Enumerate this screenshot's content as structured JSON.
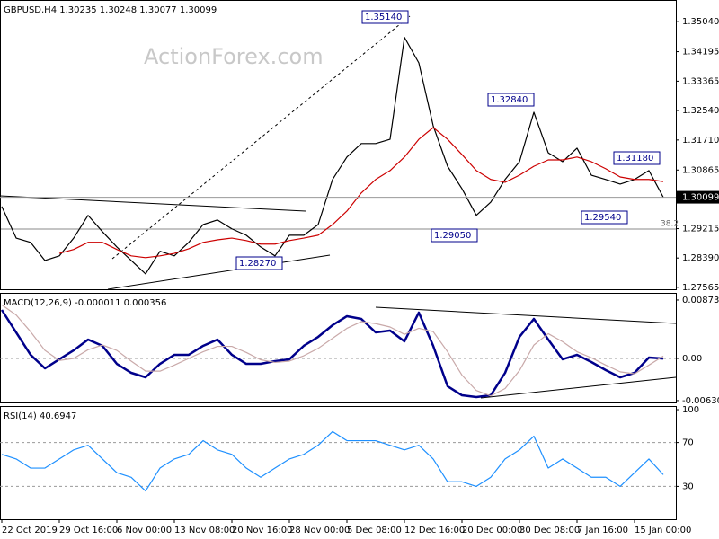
{
  "chart_data": [
    {
      "type": "line",
      "title": "GBPUSD,H4  1.30235 1.30248 1.30077 1.30099",
      "watermark": "ActionForex.com",
      "x": [
        0,
        1,
        2,
        3,
        4,
        5,
        6,
        7,
        8,
        9,
        10,
        11,
        12,
        13,
        14,
        15,
        16,
        17,
        18,
        19,
        20,
        21,
        22,
        23,
        24,
        25,
        26,
        27,
        28,
        29,
        30,
        31,
        32,
        33,
        34,
        35,
        36,
        37,
        38,
        39,
        40,
        41,
        42,
        43,
        44,
        45,
        46
      ],
      "xlim": [
        0,
        47
      ],
      "xticks": [
        {
          "value": 0,
          "label": "22 Oct 2019"
        },
        {
          "value": 4,
          "label": "29 Oct 16:00"
        },
        {
          "value": 8,
          "label": "6 Nov 00:00"
        },
        {
          "value": 12,
          "label": "13 Nov 08:00"
        },
        {
          "value": 16,
          "label": "20 Nov 16:00"
        },
        {
          "value": 20,
          "label": "28 Nov 00:00"
        },
        {
          "value": 24,
          "label": "5 Dec 08:00"
        },
        {
          "value": 28,
          "label": "12 Dec 16:00"
        },
        {
          "value": 32,
          "label": "20 Dec 00:00"
        },
        {
          "value": 36,
          "label": "30 Dec 08:00"
        },
        {
          "value": 40,
          "label": "7 Jan 16:00"
        },
        {
          "value": 44,
          "label": "15 Jan 00:00"
        }
      ],
      "ylim": [
        1.2751,
        1.3565
      ],
      "yticks": [
        {
          "value": 1.3504,
          "label": "1.35040"
        },
        1.34195,
        1.33365,
        {
          "value": 1.3254,
          "label": "1.32540"
        },
        {
          "value": 1.3171,
          "label": "1.31710"
        },
        1.30865,
        1.29215,
        {
          "value": 1.2839,
          "label": "1.28390"
        },
        1.27565
      ],
      "last_price": 1.30099,
      "grid": false,
      "annotations": [
        "1.35140",
        "1.32840",
        "1.31180",
        "1.29540",
        "1.29050",
        "1.28270",
        "38.2"
      ],
      "series": [
        {
          "color": "#000000",
          "values": [
            1.2984,
            1.2895,
            1.2883,
            1.2832,
            1.2845,
            1.2895,
            1.2959,
            1.2913,
            1.287,
            1.2832,
            1.2794,
            1.2858,
            1.2845,
            1.2883,
            1.2933,
            1.2946,
            1.2921,
            1.2903,
            1.287,
            1.2845,
            1.2903,
            1.2903,
            1.2933,
            1.306,
            1.3123,
            1.3161,
            1.3161,
            1.3173,
            1.346,
            1.3388,
            1.3211,
            1.3097,
            1.3034,
            1.2959,
            1.2996,
            1.306,
            1.311,
            1.3249,
            1.3135,
            1.311,
            1.3148,
            1.3072,
            1.306,
            1.3047,
            1.306,
            1.3085,
            1.301
          ]
        },
        {
          "color": "#cc0000",
          "values": [
            null,
            null,
            null,
            null,
            1.2852,
            1.2863,
            1.2883,
            1.2883,
            1.2863,
            1.2845,
            1.284,
            1.2845,
            1.2852,
            1.2865,
            1.2883,
            1.289,
            1.2895,
            1.2888,
            1.2878,
            1.2878,
            1.2888,
            1.2895,
            1.2903,
            1.2933,
            1.2971,
            1.3022,
            1.306,
            1.3085,
            1.3123,
            1.3173,
            1.3206,
            1.3173,
            1.313,
            1.3085,
            1.306,
            1.3052,
            1.3072,
            1.3097,
            1.3115,
            1.3115,
            1.3123,
            1.311,
            1.309,
            1.3067,
            1.306,
            1.306,
            1.3054
          ]
        }
      ]
    },
    {
      "type": "line",
      "title": "MACD(12,26,9) -0.000011 0.000356",
      "ylim": [
        -0.00658,
        0.0098
      ],
      "yticks": [
        0.00873,
        {
          "value": 0,
          "label": "0.00"
        },
        -0.006302
      ],
      "grid": true,
      "series": [
        {
          "color": "#00008b",
          "values": [
            0.00725,
            0.00389,
            0.00054,
            -0.00148,
            -0.00013,
            0.00121,
            0.00282,
            0.00188,
            -0.00081,
            -0.00215,
            -0.00282,
            -0.00081,
            0.00054,
            0.00054,
            0.00188,
            0.00282,
            0.00054,
            -0.00081,
            -0.00081,
            -0.0004,
            -0.00013,
            0.00188,
            0.00322,
            0.00497,
            0.00631,
            0.00591,
            0.00389,
            0.00416,
            0.00255,
            0.00685,
            0.00188,
            -0.00416,
            -0.00551,
            -0.00577,
            -0.00551,
            -0.00215,
            0.00322,
            0.00591,
            0.00282,
            -0.00013,
            0.00054,
            -0.00054,
            -0.00175,
            -0.00282,
            -0.00215,
            0.00013,
            -1.1e-05
          ]
        },
        {
          "color": "#c9a9a9",
          "values": [
            0.008,
            0.0065,
            0.004,
            0.0012,
            -0.0003,
            0,
            0.0013,
            0.002,
            0.0012,
            -0.0004,
            -0.0019,
            -0.0019,
            -0.001,
            0,
            0.001,
            0.0018,
            0.0018,
            0.0009,
            -0.0002,
            -0.0006,
            -0.0004,
            0.0004,
            0.0015,
            0.003,
            0.0045,
            0.0055,
            0.0052,
            0.0047,
            0.0036,
            0.0045,
            0.004,
            0.001,
            -0.0025,
            -0.0048,
            -0.0056,
            -0.0045,
            -0.0018,
            0.002,
            0.0037,
            0.0025,
            0.001,
            0.0001,
            -0.001,
            -0.002,
            -0.0023,
            -0.001,
            0.000356
          ]
        }
      ]
    },
    {
      "type": "line",
      "title": "RSI(14) 40.6947",
      "ylim": [
        0,
        103.3
      ],
      "yticks": [
        100,
        70,
        30
      ],
      "grid": true,
      "series": [
        {
          "color": "#1e90ff",
          "values": [
            59.2,
            55,
            46.7,
            46.7,
            55,
            63.3,
            67.5,
            55,
            42.5,
            38.3,
            25.8,
            46.7,
            55,
            59.2,
            71.7,
            63.3,
            59.2,
            46.7,
            38.3,
            46.7,
            55,
            59.2,
            67.5,
            80,
            71.7,
            71.7,
            71.7,
            67.5,
            63.3,
            67.5,
            55,
            34.2,
            34.2,
            30,
            38.3,
            55,
            63.3,
            75.8,
            46.7,
            55,
            46.7,
            38.3,
            38.3,
            30,
            42.5,
            55,
            40.6947
          ]
        }
      ]
    }
  ]
}
